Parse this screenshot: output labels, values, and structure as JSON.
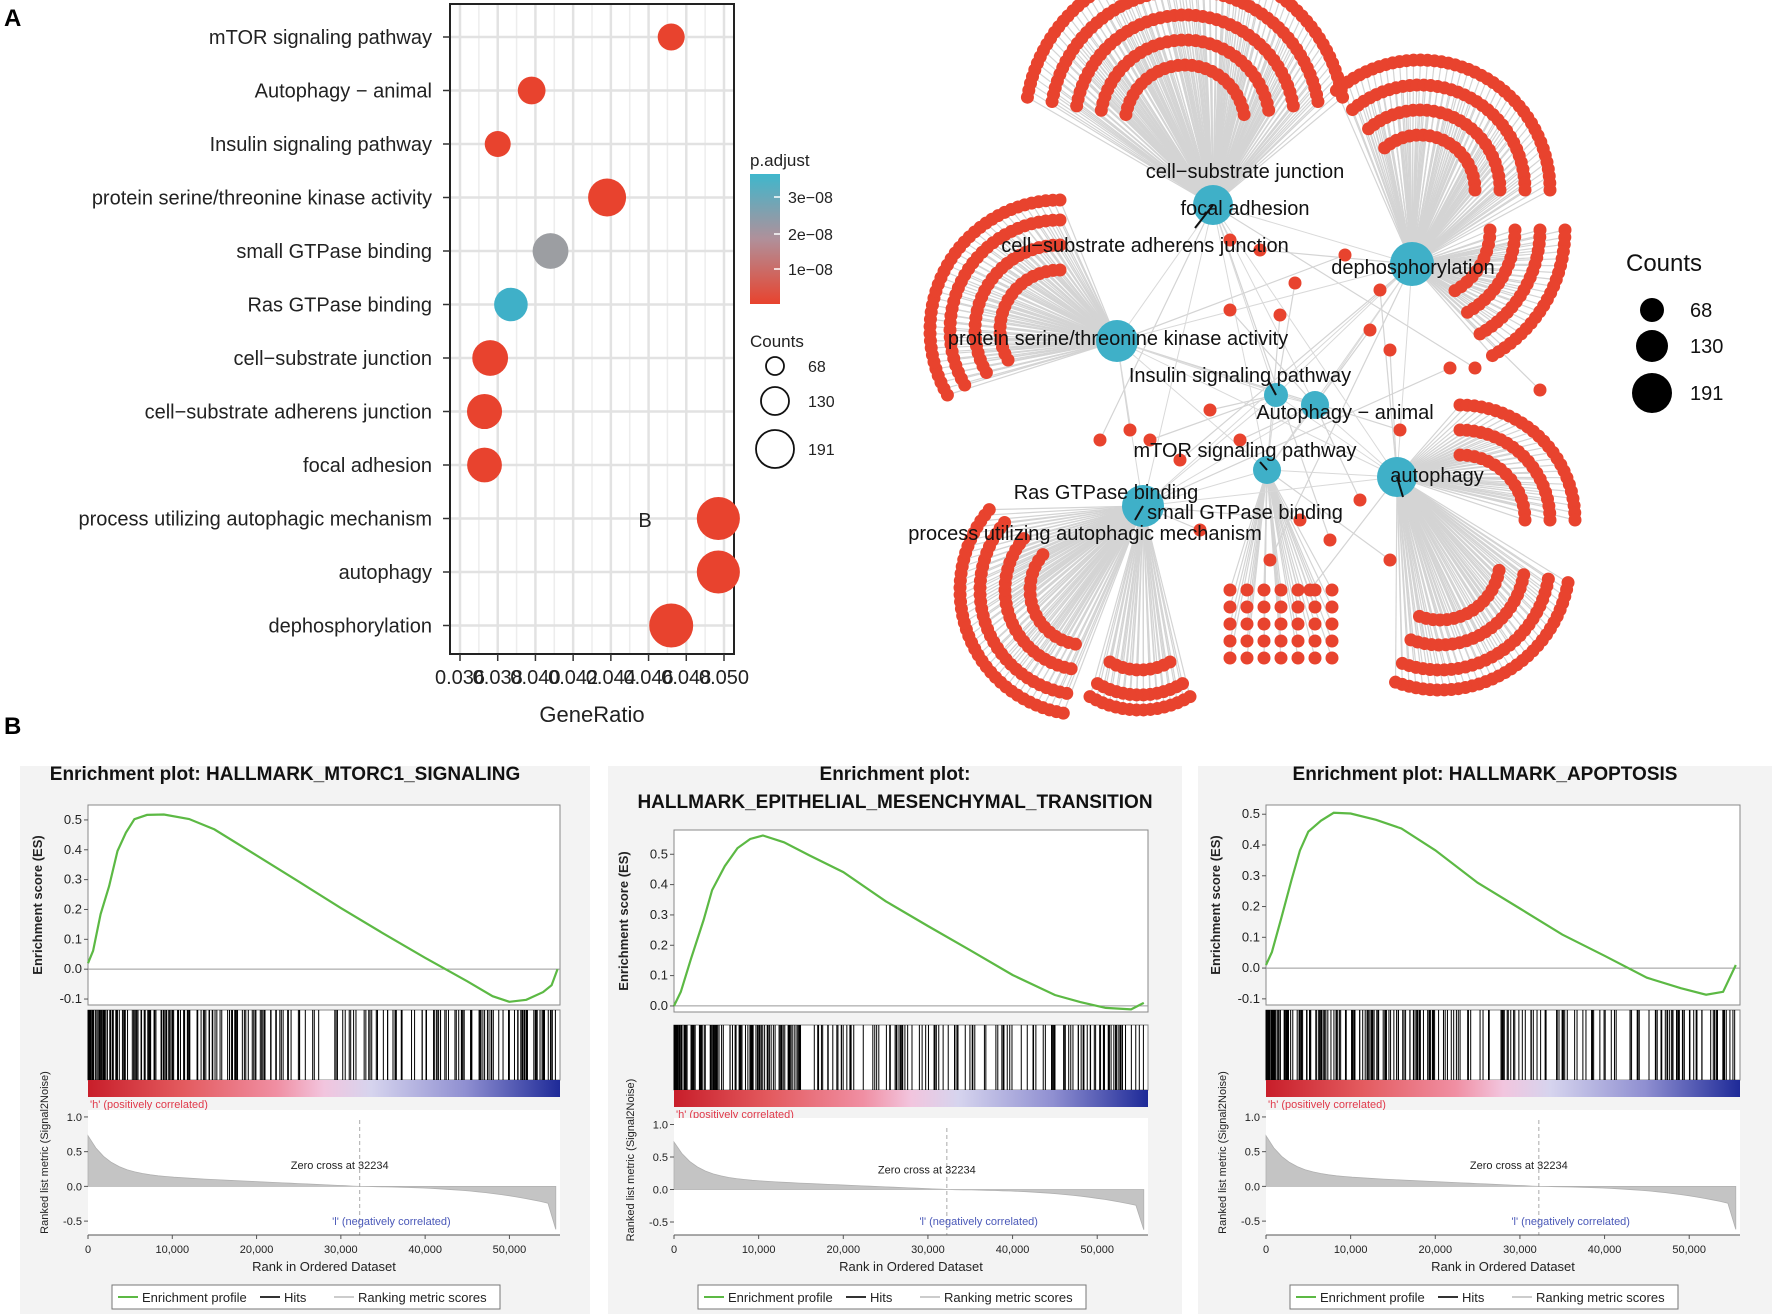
{
  "panel_a_label": "A",
  "panel_b_label": "B",
  "stray_label": "B",
  "colors": {
    "red": "#e8432e",
    "blue": "#3fb0c8",
    "grey": "#9c9ea2",
    "green": "#5cb944"
  },
  "chart_data": [
    {
      "type": "scatter",
      "name": "dotplot",
      "xlabel": "GeneRatio",
      "xlim": [
        0.036,
        0.05
      ],
      "xticks": [
        "0.036",
        "0.038",
        "0.040",
        "0.042",
        "0.044",
        "0.046",
        "0.048",
        "0.050"
      ],
      "categories": [
        "mTOR signaling pathway",
        "Autophagy − animal",
        "Insulin signaling pathway",
        "protein serine/threonine kinase activity",
        "small GTPase binding",
        "Ras GTPase binding",
        "cell−substrate junction",
        "cell−substrate adherens junction",
        "focal adhesion",
        "process utilizing autophagic mechanism",
        "autophagy",
        "dephosphorylation"
      ],
      "points": [
        {
          "term": "mTOR signaling pathway",
          "gene_ratio": 0.0472,
          "count": 75,
          "color": "red"
        },
        {
          "term": "Autophagy − animal",
          "gene_ratio": 0.0398,
          "count": 80,
          "color": "red"
        },
        {
          "term": "Insulin signaling pathway",
          "gene_ratio": 0.038,
          "count": 68,
          "color": "red"
        },
        {
          "term": "protein serine/threonine kinase activity",
          "gene_ratio": 0.0438,
          "count": 150,
          "color": "red"
        },
        {
          "term": "small GTPase binding",
          "gene_ratio": 0.0408,
          "count": 135,
          "color": "grey"
        },
        {
          "term": "Ras GTPase binding",
          "gene_ratio": 0.0387,
          "count": 120,
          "color": "blue"
        },
        {
          "term": "cell−substrate junction",
          "gene_ratio": 0.0376,
          "count": 135,
          "color": "red"
        },
        {
          "term": "cell−substrate adherens junction",
          "gene_ratio": 0.0373,
          "count": 130,
          "color": "red"
        },
        {
          "term": "focal adhesion",
          "gene_ratio": 0.0373,
          "count": 128,
          "color": "red"
        },
        {
          "term": "process utilizing autophagic mechanism",
          "gene_ratio": 0.0497,
          "count": 185,
          "color": "red"
        },
        {
          "term": "autophagy",
          "gene_ratio": 0.0497,
          "count": 185,
          "color": "red"
        },
        {
          "term": "dephosphorylation",
          "gene_ratio": 0.0472,
          "count": 191,
          "color": "red"
        }
      ],
      "legend": {
        "padjust_title": "p.adjust",
        "padjust_ticks": [
          "3e−08",
          "2e−08",
          "1e−08"
        ],
        "counts_title": "Counts",
        "counts": [
          "68",
          "130",
          "191"
        ]
      }
    },
    {
      "type": "network",
      "name": "cnetplot",
      "terms": [
        "cell−substrate junction",
        "focal adhesion",
        "cell−substrate adherens junction",
        "dephosphorylation",
        "protein serine/threonine kinase activity",
        "Insulin signaling pathway",
        "Autophagy − animal",
        "mTOR signaling pathway",
        "autophagy",
        "Ras GTPase binding",
        "small GTPase binding",
        "process utilizing autophagic mechanism"
      ],
      "legend": {
        "title": "Counts",
        "values": [
          "68",
          "130",
          "191"
        ]
      }
    },
    {
      "type": "line",
      "name": "gsea-mtorc1",
      "title_lines": [
        "Enrichment plot: HALLMARK_MTORC1_SIGNALING"
      ],
      "es_yticks": [
        "0.5",
        "0.4",
        "0.3",
        "0.2",
        "0.1",
        "0.0",
        "-0.1"
      ],
      "es_ylim": [
        -0.12,
        0.55
      ],
      "es_points": [
        [
          0,
          0.02
        ],
        [
          600,
          0.06
        ],
        [
          1500,
          0.18
        ],
        [
          2500,
          0.28
        ],
        [
          3500,
          0.4
        ],
        [
          4500,
          0.46
        ],
        [
          5500,
          0.5
        ],
        [
          7000,
          0.52
        ],
        [
          9000,
          0.52
        ],
        [
          12000,
          0.5
        ],
        [
          15000,
          0.47
        ],
        [
          20000,
          0.38
        ],
        [
          25000,
          0.29
        ],
        [
          30000,
          0.2
        ],
        [
          35000,
          0.12
        ],
        [
          40000,
          0.04
        ],
        [
          45000,
          -0.04
        ],
        [
          48000,
          -0.09
        ],
        [
          50000,
          -0.11
        ],
        [
          52000,
          -0.1
        ],
        [
          54000,
          -0.08
        ],
        [
          55000,
          -0.05
        ],
        [
          55700,
          0.0
        ]
      ],
      "zero_cross": "Zero cross at 32234",
      "pos_label": "'h' (positively correlated)",
      "neg_label": "'l' (negatively correlated)",
      "metric_yticks": [
        "1.0",
        "0.5",
        "0.0",
        "-0.5"
      ],
      "xticks": [
        "0",
        "10,000",
        "20,000",
        "30,000",
        "40,000",
        "50,000"
      ],
      "xlabel": "Rank in Ordered Dataset",
      "ylabel_es": "Enrichment score (ES)",
      "ylabel_metric": "Ranked list metric (Signal2Noise)",
      "legend": [
        "Enrichment profile",
        "Hits",
        "Ranking metric scores"
      ]
    },
    {
      "type": "line",
      "name": "gsea-emt",
      "title_lines": [
        "Enrichment plot:",
        "HALLMARK_EPITHELIAL_MESENCHYMAL_TRANSITION"
      ],
      "es_yticks": [
        "0.5",
        "0.4",
        "0.3",
        "0.2",
        "0.1",
        "0.0"
      ],
      "es_ylim": [
        -0.02,
        0.58
      ],
      "es_points": [
        [
          0,
          0.0
        ],
        [
          800,
          0.05
        ],
        [
          2000,
          0.15
        ],
        [
          3500,
          0.28
        ],
        [
          4500,
          0.38
        ],
        [
          6000,
          0.46
        ],
        [
          7500,
          0.52
        ],
        [
          9000,
          0.55
        ],
        [
          10500,
          0.56
        ],
        [
          13000,
          0.54
        ],
        [
          16000,
          0.5
        ],
        [
          20000,
          0.44
        ],
        [
          25000,
          0.35
        ],
        [
          30000,
          0.26
        ],
        [
          35000,
          0.18
        ],
        [
          40000,
          0.1
        ],
        [
          45000,
          0.04
        ],
        [
          48000,
          0.01
        ],
        [
          51000,
          -0.01
        ],
        [
          54000,
          -0.01
        ],
        [
          55500,
          0.01
        ]
      ],
      "zero_cross": "Zero cross at 32234",
      "pos_label": "'h' (positively correlated)",
      "neg_label": "'l' (negatively correlated)",
      "metric_yticks": [
        "1.0",
        "0.5",
        "0.0",
        "-0.5"
      ],
      "xticks": [
        "0",
        "10,000",
        "20,000",
        "30,000",
        "40,000",
        "50,000"
      ],
      "xlabel": "Rank in Ordered Dataset",
      "ylabel_es": "Enrichment score (ES)",
      "ylabel_metric": "Ranked list metric (Signal2Noise)",
      "legend": [
        "Enrichment profile",
        "Hits",
        "Ranking metric scores"
      ]
    },
    {
      "type": "line",
      "name": "gsea-apoptosis",
      "title_lines": [
        "Enrichment plot: HALLMARK_APOPTOSIS"
      ],
      "es_yticks": [
        "0.5",
        "0.4",
        "0.3",
        "0.2",
        "0.1",
        "0.0",
        "-0.1"
      ],
      "es_ylim": [
        -0.12,
        0.53
      ],
      "es_points": [
        [
          0,
          0.01
        ],
        [
          700,
          0.05
        ],
        [
          1800,
          0.16
        ],
        [
          3000,
          0.28
        ],
        [
          4000,
          0.38
        ],
        [
          5000,
          0.44
        ],
        [
          6500,
          0.48
        ],
        [
          8000,
          0.5
        ],
        [
          10000,
          0.5
        ],
        [
          13000,
          0.48
        ],
        [
          16000,
          0.45
        ],
        [
          20000,
          0.38
        ],
        [
          25000,
          0.28
        ],
        [
          30000,
          0.19
        ],
        [
          35000,
          0.11
        ],
        [
          40000,
          0.04
        ],
        [
          45000,
          -0.03
        ],
        [
          49000,
          -0.07
        ],
        [
          52000,
          -0.09
        ],
        [
          54000,
          -0.08
        ],
        [
          55500,
          0.01
        ]
      ],
      "zero_cross": "Zero cross at 32234",
      "pos_label": "'h' (positively correlated)",
      "neg_label": "'l' (negatively correlated)",
      "metric_yticks": [
        "1.0",
        "0.5",
        "0.0",
        "-0.5"
      ],
      "xticks": [
        "0",
        "10,000",
        "20,000",
        "30,000",
        "40,000",
        "50,000"
      ],
      "xlabel": "Rank in Ordered Dataset",
      "ylabel_es": "Enrichment score (ES)",
      "ylabel_metric": "Ranked list metric (Signal2Noise)",
      "legend": [
        "Enrichment profile",
        "Hits",
        "Ranking metric scores"
      ]
    }
  ]
}
